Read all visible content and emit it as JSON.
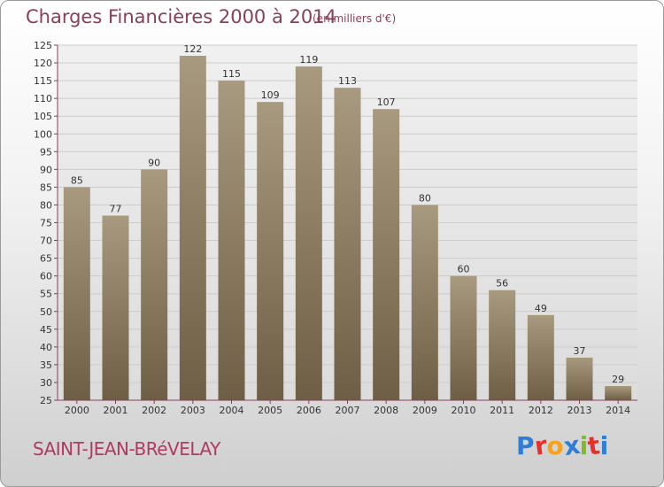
{
  "header": {
    "title": "Charges Financières 2000 à 2014",
    "subtitle": "(en milliers d'€)"
  },
  "footer": {
    "city": "SAINT-JEAN-BRéVELAY",
    "logo_letters": [
      "P",
      "r",
      "o",
      "x",
      "i",
      "t",
      "i"
    ],
    "logo_colors": [
      "#2c7fd4",
      "#e4312b",
      "#f6a21b",
      "#2c7fd4",
      "#7fba2a",
      "#e4312b",
      "#2c7fd4"
    ]
  },
  "chart_data": {
    "type": "bar",
    "categories": [
      "2000",
      "2001",
      "2002",
      "2003",
      "2004",
      "2005",
      "2006",
      "2007",
      "2008",
      "2009",
      "2010",
      "2011",
      "2012",
      "2013",
      "2014"
    ],
    "values": [
      85,
      77,
      90,
      122,
      115,
      109,
      119,
      113,
      107,
      80,
      60,
      56,
      49,
      37,
      29
    ],
    "ylim": [
      25,
      125
    ],
    "yticks": [
      25,
      30,
      35,
      40,
      45,
      50,
      55,
      60,
      65,
      70,
      75,
      80,
      85,
      90,
      95,
      100,
      105,
      110,
      115,
      120,
      125
    ],
    "grid": true,
    "colors": {
      "bar_top": "#a89a7e",
      "bar_bottom": "#6e5e45",
      "axis": "#8a3e57",
      "grid": "#cccccc"
    }
  }
}
